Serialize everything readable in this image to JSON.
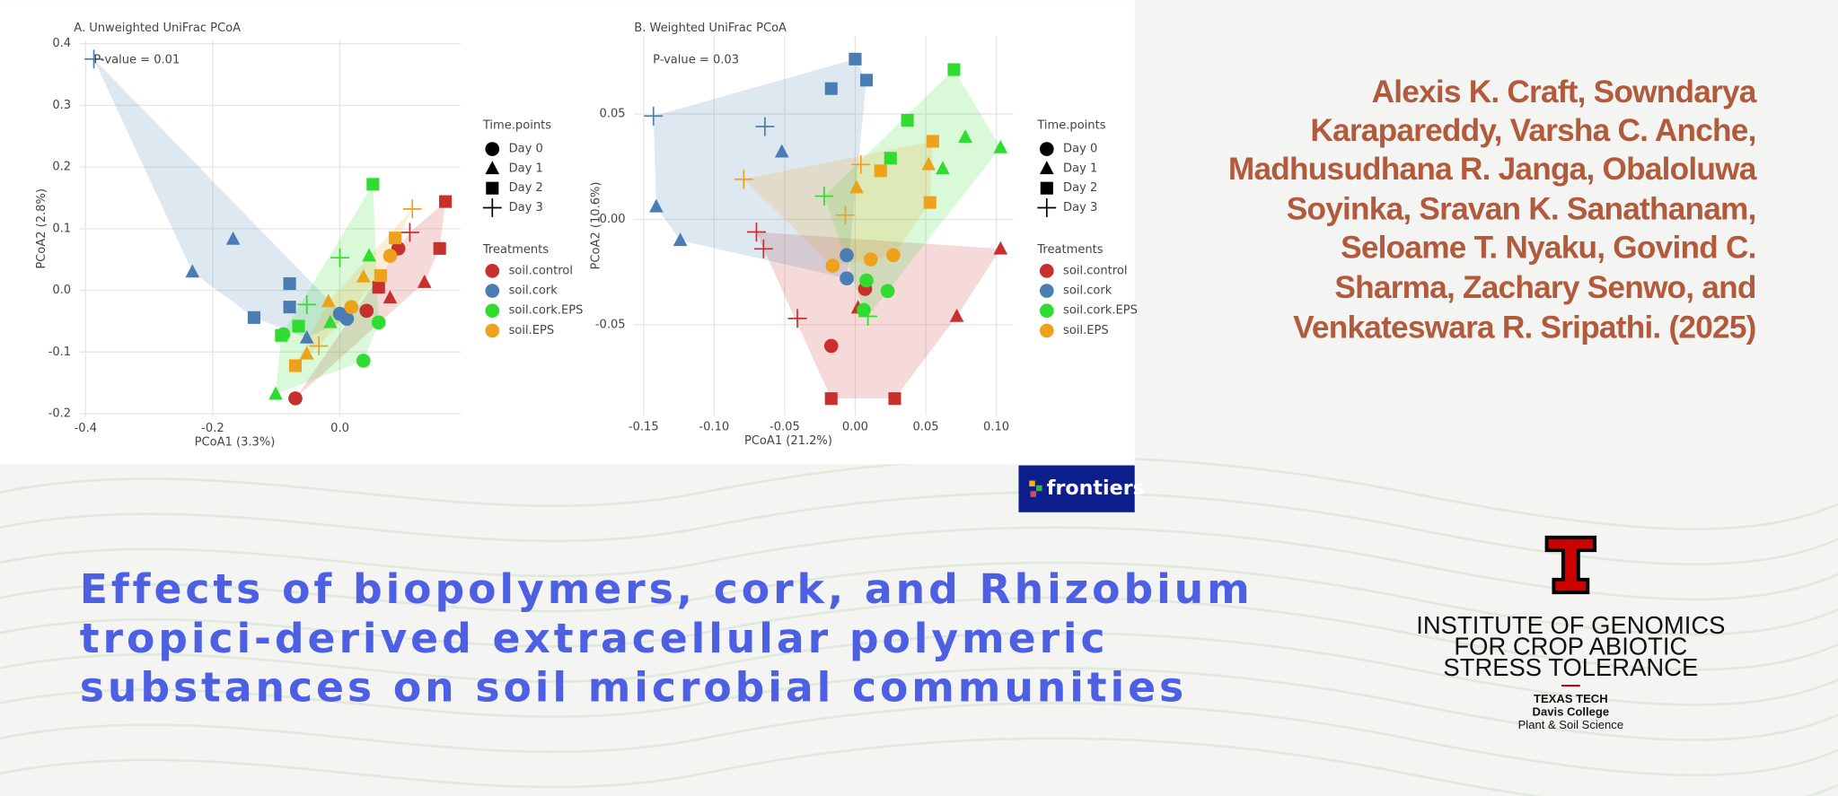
{
  "chart_data": [
    {
      "type": "scatter",
      "title": "A. Unweighted UniFrac PCoA",
      "annotation": "P-value = 0.01",
      "x_label": "PCoA1 (3.3%)",
      "y_label": "PCoA2 (2.8%)",
      "xlim": [
        -0.41,
        0.19
      ],
      "ylim": [
        -0.205,
        0.405
      ],
      "xticks": [
        -0.4,
        -0.2,
        {
          "value": 0,
          "label": "0.0"
        }
      ],
      "yticks": [
        -0.2,
        -0.1,
        {
          "value": 0,
          "label": "0.0"
        },
        0.1,
        0.2,
        0.3,
        0.4
      ],
      "grid": true,
      "hulls": true,
      "shape_legend": {
        "title": "Time.points",
        "labels": [
          "Day 0",
          "Day 1",
          "Day 2",
          "Day 3"
        ],
        "markers": [
          "circle",
          "triangle",
          "square",
          "plus"
        ]
      },
      "color_legend_title": "Treatments",
      "series": [
        {
          "name": "soil.control",
          "color": "#c8302e",
          "points": [
            {
              "x": [
                -0.07,
                0.092,
                0.042
              ],
              "y": [
                -0.175,
                0.068,
                -0.033
              ]
            },
            {
              "x": [
                0.133,
                0.079
              ],
              "y": [
                0.013,
                -0.012
              ]
            },
            {
              "x": [
                0.166,
                0.157,
                0.061
              ],
              "y": [
                0.144,
                0.068,
                0.005
              ]
            },
            {
              "x": [
                0.11
              ],
              "y": [
                0.094
              ]
            }
          ]
        },
        {
          "name": "soil.cork",
          "color": "#4a7db3",
          "points": [
            {
              "x": [
                0.0,
                0.011
              ],
              "y": [
                -0.038,
                -0.046
              ]
            },
            {
              "x": [
                -0.232,
                -0.168,
                -0.052
              ],
              "y": [
                0.03,
                0.083,
                -0.077
              ]
            },
            {
              "x": [
                -0.135,
                -0.079,
                -0.079
              ],
              "y": [
                -0.044,
                0.011,
                -0.027
              ]
            },
            {
              "x": [
                -0.387
              ],
              "y": [
                0.375
              ]
            }
          ]
        },
        {
          "name": "soil.cork.EPS",
          "color": "#2fdc2f",
          "points": [
            {
              "x": [
                0.037,
                0.061,
                -0.089
              ],
              "y": [
                -0.114,
                -0.052,
                -0.071
              ]
            },
            {
              "x": [
                -0.101,
                -0.015,
                0.046
              ],
              "y": [
                -0.168,
                -0.052,
                0.056
              ]
            },
            {
              "x": [
                0.052,
                -0.065,
                -0.092
              ],
              "y": [
                0.172,
                -0.058,
                -0.073
              ]
            },
            {
              "x": [
                0.0,
                -0.052
              ],
              "y": [
                0.053,
                -0.023
              ]
            }
          ]
        },
        {
          "name": "soil.EPS",
          "color": "#eea21c",
          "points": [
            {
              "x": [
                0.079,
                0.018
              ],
              "y": [
                0.056,
                -0.027
              ]
            },
            {
              "x": [
                -0.052,
                0.037,
                -0.018
              ],
              "y": [
                -0.103,
                0.022,
                -0.018
              ]
            },
            {
              "x": [
                0.087,
                -0.07,
                0.064
              ],
              "y": [
                0.085,
                -0.122,
                0.024
              ]
            },
            {
              "x": [
                0.114,
                -0.033
              ],
              "y": [
                0.132,
                -0.09
              ]
            }
          ]
        }
      ]
    },
    {
      "type": "scatter",
      "title": "B. Weighted UniFrac PCoA",
      "annotation": "P-value = 0.03",
      "x_label": "PCoA1 (21.2%)",
      "y_label": "PCoA2 (10.6%)",
      "xlim": [
        -0.157,
        0.112
      ],
      "ylim": [
        -0.093,
        0.087
      ],
      "xticks": [
        -0.15,
        {
          "value": -0.1,
          "label": "-0.10"
        },
        -0.05,
        {
          "value": 0,
          "label": "0.00"
        },
        0.05,
        {
          "value": 0.1,
          "label": "0.10"
        }
      ],
      "yticks": [
        -0.05,
        {
          "value": 0,
          "label": "0.00"
        },
        0.05
      ],
      "grid": true,
      "hulls": true,
      "shape_legend": {
        "title": "Time.points",
        "labels": [
          "Day 0",
          "Day 1",
          "Day 2",
          "Day 3"
        ],
        "markers": [
          "circle",
          "triangle",
          "square",
          "plus"
        ]
      },
      "color_legend_title": "Treatments",
      "series": [
        {
          "name": "soil.control",
          "color": "#c8302e",
          "points": [
            {
              "x": [
                -0.017,
                0.007
              ],
              "y": [
                -0.06,
                -0.033
              ]
            },
            {
              "x": [
                0.103,
                0.072,
                0.002
              ],
              "y": [
                -0.014,
                -0.046,
                -0.042
              ]
            },
            {
              "x": [
                -0.017,
                0.028
              ],
              "y": [
                -0.085,
                -0.085
              ]
            },
            {
              "x": [
                -0.07,
                -0.041,
                -0.065
              ],
              "y": [
                -0.006,
                -0.047,
                -0.014
              ]
            }
          ]
        },
        {
          "name": "soil.cork",
          "color": "#4a7db3",
          "points": [
            {
              "x": [
                -0.006,
                -0.006
              ],
              "y": [
                -0.017,
                -0.028
              ]
            },
            {
              "x": [
                -0.141,
                -0.124,
                -0.052
              ],
              "y": [
                0.006,
                -0.01,
                0.032
              ]
            },
            {
              "x": [
                0.0,
                -0.017,
                0.008
              ],
              "y": [
                0.076,
                0.062,
                0.066
              ]
            },
            {
              "x": [
                -0.143,
                -0.064
              ],
              "y": [
                0.049,
                0.044
              ]
            }
          ]
        },
        {
          "name": "soil.cork.EPS",
          "color": "#2fdc2f",
          "points": [
            {
              "x": [
                0.006,
                0.023,
                0.008
              ],
              "y": [
                -0.043,
                -0.034,
                -0.029
              ]
            },
            {
              "x": [
                0.103,
                0.078,
                0.062
              ],
              "y": [
                0.034,
                0.039,
                0.024
              ]
            },
            {
              "x": [
                0.07,
                0.037,
                0.025
              ],
              "y": [
                0.071,
                0.047,
                0.029
              ]
            },
            {
              "x": [
                -0.022,
                0.009
              ],
              "y": [
                0.011,
                -0.046
              ]
            }
          ]
        },
        {
          "name": "soil.EPS",
          "color": "#eea21c",
          "points": [
            {
              "x": [
                0.027,
                0.011,
                -0.016
              ],
              "y": [
                -0.017,
                -0.019,
                -0.022
              ]
            },
            {
              "x": [
                0.052,
                0.001
              ],
              "y": [
                0.026,
                0.015
              ]
            },
            {
              "x": [
                0.055,
                0.053,
                0.018
              ],
              "y": [
                0.037,
                0.008,
                0.023
              ]
            },
            {
              "x": [
                -0.079,
                -0.007,
                0.004
              ],
              "y": [
                0.019,
                0.002,
                0.026
              ]
            }
          ]
        }
      ]
    }
  ],
  "authors": [
    "Alexis K. Craft, Sowndarya",
    "Karapareddy, Varsha C. Anche,",
    "Madhusudhana R. Janga, Obaloluwa",
    "Soyinka, Sravan K. Sanathanam,",
    "Seloame T. Nyaku, Govind C.",
    "Sharma, Zachary Senwo, and",
    "Venkateswara R. Sripathi. (2025)"
  ],
  "title": [
    "Effects of biopolymers, cork, and Rhizobium",
    "tropici-derived extracellular polymeric",
    "substances on soil microbial communities"
  ],
  "publisher": "frontiers",
  "institute": [
    "INSTITUTE OF GENOMICS",
    "FOR CROP ABIOTIC",
    "STRESS TOLERANCE"
  ],
  "university": "TEXAS TECH",
  "college": "Davis College",
  "department": "Plant & Soil Science"
}
